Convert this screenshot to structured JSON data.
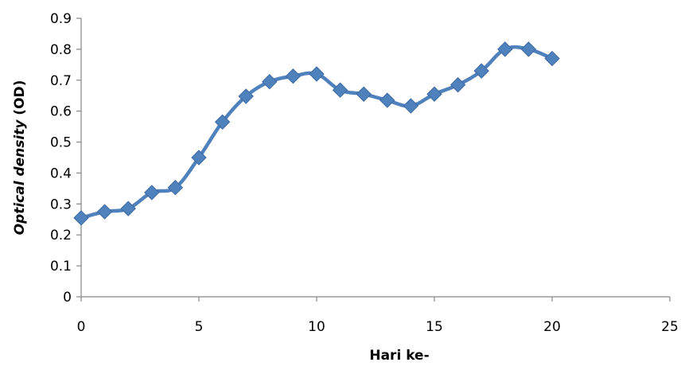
{
  "chart_data": {
    "type": "line",
    "xlabel": "Hari ke-",
    "ylabel_parts": [
      "Optical density",
      " (OD)"
    ],
    "xlim": [
      0,
      25
    ],
    "ylim": [
      0,
      0.9
    ],
    "xticks": [
      "0",
      "5",
      "10",
      "15",
      "20",
      "25"
    ],
    "yticks": [
      "0",
      "0.1",
      "0.2",
      "0.3",
      "0.4",
      "0.5",
      "0.6",
      "0.7",
      "0.8",
      "0.9"
    ],
    "grid": false,
    "legend": "none",
    "series": [
      {
        "color": "#4f81bd",
        "marker": "diamond",
        "x": [
          0,
          1,
          2,
          3,
          4,
          5,
          6,
          7,
          8,
          9,
          10,
          11,
          12,
          13,
          14,
          15,
          16,
          17,
          18,
          19,
          20
        ],
        "y": [
          0.255,
          0.275,
          0.285,
          0.337,
          0.353,
          0.45,
          0.565,
          0.648,
          0.695,
          0.713,
          0.72,
          0.668,
          0.655,
          0.635,
          0.617,
          0.655,
          0.685,
          0.73,
          0.8,
          0.8,
          0.77
        ]
      }
    ]
  }
}
